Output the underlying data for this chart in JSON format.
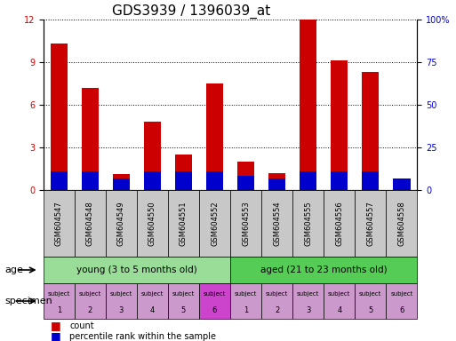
{
  "title": "GDS3939 / 1396039_at",
  "samples": [
    "GSM604547",
    "GSM604548",
    "GSM604549",
    "GSM604550",
    "GSM604551",
    "GSM604552",
    "GSM604553",
    "GSM604554",
    "GSM604555",
    "GSM604556",
    "GSM604557",
    "GSM604558"
  ],
  "count_values": [
    10.3,
    7.2,
    1.1,
    4.8,
    2.5,
    7.5,
    2.0,
    1.2,
    12.0,
    9.1,
    8.3,
    0.1
  ],
  "percentile_values": [
    1.3,
    1.3,
    0.8,
    1.3,
    1.3,
    1.3,
    1.0,
    0.8,
    1.3,
    1.3,
    1.3,
    0.8
  ],
  "ylim_left": [
    0,
    12
  ],
  "ylim_right": [
    0,
    100
  ],
  "yticks_left": [
    0,
    3,
    6,
    9,
    12
  ],
  "yticks_right": [
    0,
    25,
    50,
    75,
    100
  ],
  "ytick_labels_right": [
    "0",
    "25",
    "50",
    "75",
    "100%"
  ],
  "count_color": "#cc0000",
  "percentile_color": "#0000cc",
  "bar_width": 0.55,
  "specimen_colors_young": [
    "#cc99cc",
    "#cc99cc",
    "#cc99cc",
    "#cc99cc",
    "#cc99cc",
    "#cc44cc"
  ],
  "specimen_colors_aged": [
    "#cc99cc",
    "#cc99cc",
    "#cc99cc",
    "#cc99cc",
    "#cc99cc",
    "#cc99cc"
  ],
  "specimen_labels": [
    "subject\n1",
    "subject\n2",
    "subject\n3",
    "subject\n4",
    "subject\n5",
    "subject\n6",
    "subject\n1",
    "subject\n2",
    "subject\n3",
    "subject\n4",
    "subject\n5",
    "subject\n6"
  ],
  "age_label": "age",
  "specimen_label": "specimen",
  "legend_count": "count",
  "legend_percentile": "percentile rank within the sample",
  "left_yaxis_color": "#cc0000",
  "right_yaxis_color": "#0000cc",
  "title_fontsize": 11,
  "tick_fontsize": 7,
  "gsm_fontsize": 6,
  "young_color": "#99dd99",
  "aged_color": "#55cc55",
  "gray_color": "#c8c8c8"
}
